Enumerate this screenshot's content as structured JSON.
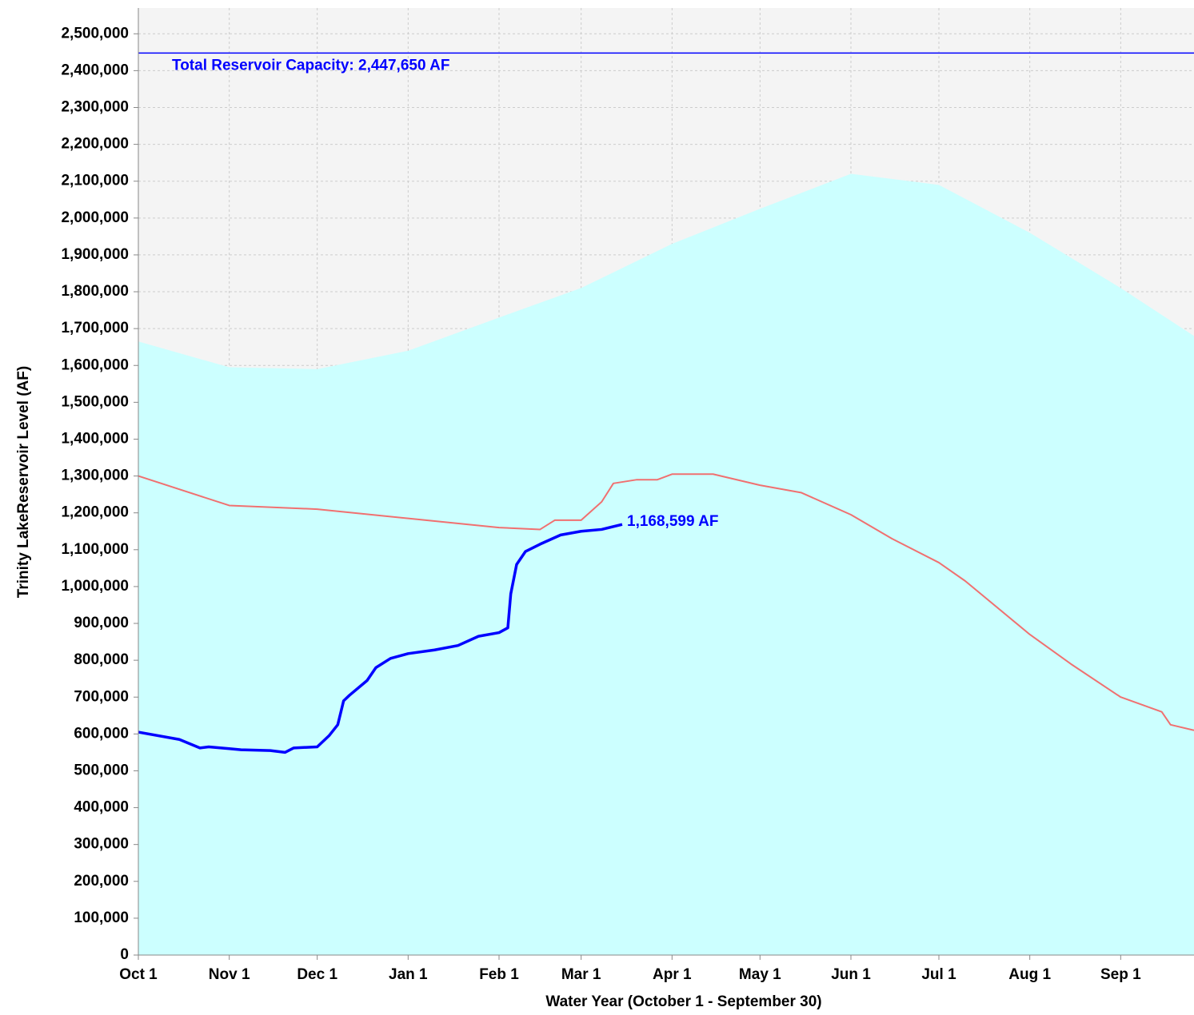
{
  "chart_data": {
    "type": "line",
    "xlabel": "Water Year (October 1 - September 30)",
    "ylabel": "Trinity LakeReservoir Level (AF)",
    "xlim": [
      0,
      360
    ],
    "ylim": [
      0,
      2570000
    ],
    "grid": true,
    "xticks": [
      {
        "value": 0,
        "label": "Oct 1"
      },
      {
        "value": 31,
        "label": "Nov 1"
      },
      {
        "value": 61,
        "label": "Dec 1"
      },
      {
        "value": 92,
        "label": "Jan 1"
      },
      {
        "value": 123,
        "label": "Feb 1"
      },
      {
        "value": 151,
        "label": "Mar 1"
      },
      {
        "value": 182,
        "label": "Apr 1"
      },
      {
        "value": 212,
        "label": "May 1"
      },
      {
        "value": 243,
        "label": "Jun 1"
      },
      {
        "value": 273,
        "label": "Jul 1"
      },
      {
        "value": 304,
        "label": "Aug 1"
      },
      {
        "value": 335,
        "label": "Sep 1"
      }
    ],
    "yticks": [
      0,
      {
        "value": 100000,
        "label": "100,000"
      },
      {
        "value": 200000,
        "label": "200,000"
      },
      {
        "value": 300000,
        "label": "300,000"
      },
      {
        "value": 400000,
        "label": "400,000"
      },
      {
        "value": 500000,
        "label": "500,000"
      },
      {
        "value": 600000,
        "label": "600,000"
      },
      {
        "value": 700000,
        "label": "700,000"
      },
      {
        "value": 800000,
        "label": "800,000"
      },
      {
        "value": 900000,
        "label": "900,000"
      },
      {
        "value": 1000000,
        "label": "1,000,000"
      },
      {
        "value": 1100000,
        "label": "1,100,000"
      },
      {
        "value": 1200000,
        "label": "1,200,000"
      },
      {
        "value": 1300000,
        "label": "1,300,000"
      },
      {
        "value": 1400000,
        "label": "1,400,000"
      },
      {
        "value": 1500000,
        "label": "1,500,000"
      },
      {
        "value": 1600000,
        "label": "1,600,000"
      },
      {
        "value": 1700000,
        "label": "1,700,000"
      },
      {
        "value": 1800000,
        "label": "1,800,000"
      },
      {
        "value": 1900000,
        "label": "1,900,000"
      },
      {
        "value": 2000000,
        "label": "2,000,000"
      },
      {
        "value": 2100000,
        "label": "2,100,000"
      },
      {
        "value": 2200000,
        "label": "2,200,000"
      },
      {
        "value": 2300000,
        "label": "2,300,000"
      },
      {
        "value": 2400000,
        "label": "2,400,000"
      },
      {
        "value": 2500000,
        "label": "2,500,000"
      }
    ],
    "capacity": {
      "value": 2447650,
      "label": "Total Reservoir Capacity: 2,447,650 AF",
      "color": "#0000ff"
    },
    "series": [
      {
        "kind": "area",
        "color": "#ccffff",
        "x": [
          0,
          31,
          61,
          92,
          123,
          151,
          182,
          212,
          243,
          273,
          304,
          335,
          360
        ],
        "values": [
          1665000,
          1595000,
          1590000,
          1640000,
          1730000,
          1810000,
          1930000,
          2025000,
          2120000,
          2090000,
          1960000,
          1810000,
          1680000
        ]
      },
      {
        "kind": "line",
        "color": "#f07070",
        "x": [
          0,
          31,
          61,
          92,
          123,
          137,
          142,
          151,
          158,
          162,
          170,
          177,
          182,
          196,
          212,
          226,
          243,
          257,
          273,
          282,
          304,
          318,
          335,
          349,
          352,
          360
        ],
        "values": [
          1300000,
          1220000,
          1210000,
          1185000,
          1160000,
          1155000,
          1180000,
          1180000,
          1230000,
          1280000,
          1290000,
          1290000,
          1305000,
          1305000,
          1275000,
          1255000,
          1195000,
          1130000,
          1065000,
          1015000,
          870000,
          790000,
          700000,
          660000,
          625000,
          610000
        ]
      },
      {
        "kind": "line",
        "color": "#0000ff",
        "width": 3.5,
        "x": [
          0,
          14,
          21,
          24,
          31,
          35,
          45,
          50,
          53,
          61,
          65,
          68,
          70,
          72,
          78,
          81,
          86,
          92,
          101,
          109,
          116,
          123,
          126,
          127,
          129,
          132,
          137,
          144,
          151,
          158,
          165
        ],
        "values": [
          605000,
          585000,
          562000,
          565000,
          560000,
          557000,
          555000,
          550000,
          562000,
          565000,
          595000,
          625000,
          690000,
          705000,
          745000,
          780000,
          805000,
          818000,
          828000,
          840000,
          865000,
          875000,
          888000,
          980000,
          1060000,
          1095000,
          1115000,
          1140000,
          1150000,
          1155000,
          1168599
        ],
        "value_labels": [
          null,
          null,
          null,
          null,
          null,
          null,
          null,
          null,
          null,
          null,
          null,
          null,
          null,
          null,
          null,
          null,
          null,
          null,
          null,
          null,
          null,
          null,
          null,
          null,
          null,
          null,
          null,
          null,
          null,
          null,
          "1,168,599 AF"
        ]
      }
    ]
  }
}
